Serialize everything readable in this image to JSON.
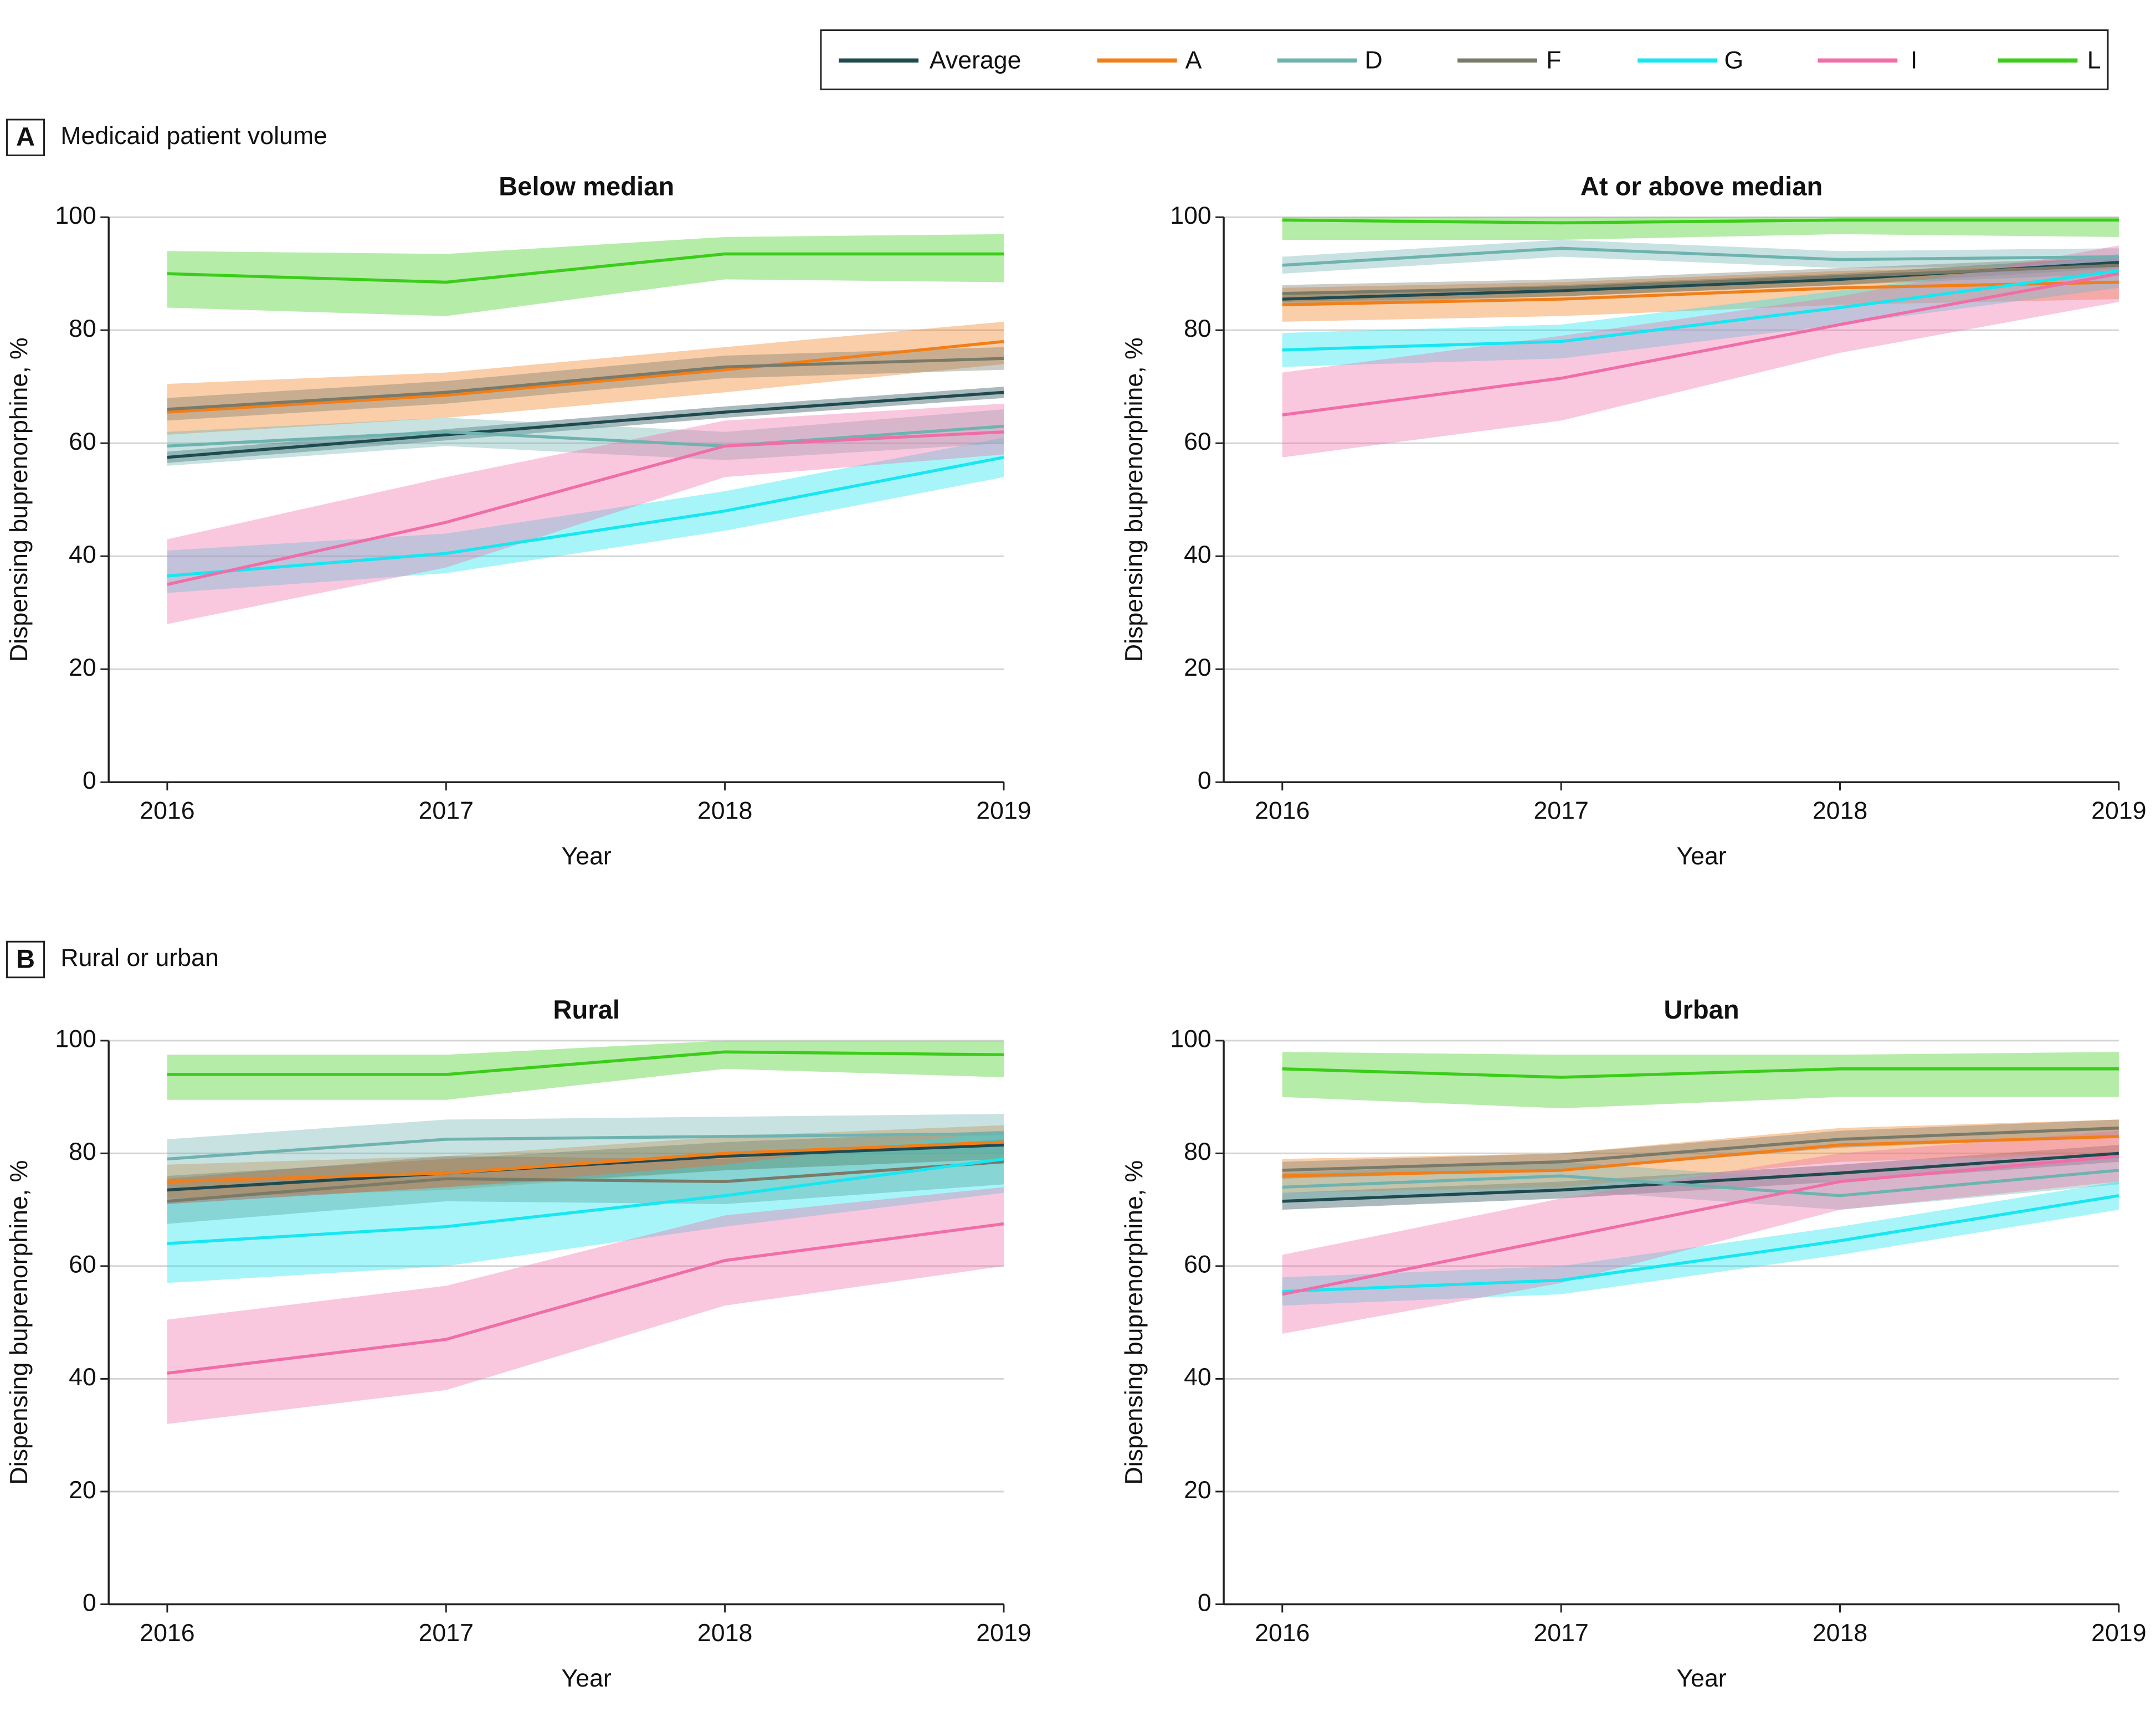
{
  "sections": [
    {
      "letter": "A",
      "title": "Medicaid patient volume"
    },
    {
      "letter": "B",
      "title": "Rural or urban"
    }
  ],
  "legend": {
    "position": "top-right"
  },
  "chart_data": [
    {
      "type": "line",
      "title": "Below median",
      "xlabel": "Year",
      "ylabel": "Dispensing buprenorphine, %",
      "x": [
        2016,
        2017,
        2018,
        2019
      ],
      "xlim": [
        2015.79,
        2019
      ],
      "xticks": [
        2016,
        2017,
        2018,
        2019
      ],
      "ylim": [
        0,
        100
      ],
      "yticks": [
        0,
        20,
        40,
        60,
        80,
        100
      ],
      "grid": true,
      "series": [
        {
          "name": "Average",
          "color": "#1f4a4f",
          "values": [
            57.5,
            61.5,
            65.5,
            69
          ],
          "lower": [
            56.5,
            60.5,
            64.5,
            68
          ],
          "upper": [
            58.5,
            62.5,
            66.5,
            70
          ]
        },
        {
          "name": "A",
          "color": "#f07f1a",
          "values": [
            65.5,
            68.5,
            73,
            78
          ],
          "lower": [
            61.5,
            64.5,
            69,
            74
          ],
          "upper": [
            70.5,
            72.5,
            77,
            81.5
          ]
        },
        {
          "name": "D",
          "color": "#6fb3b0",
          "values": [
            59.5,
            62,
            59.5,
            63
          ],
          "lower": [
            56,
            59.5,
            57,
            60
          ],
          "upper": [
            62,
            64.5,
            62,
            66
          ]
        },
        {
          "name": "F",
          "color": "#7a7a68",
          "values": [
            66,
            69,
            73.5,
            75
          ],
          "lower": [
            64,
            67,
            71.5,
            73
          ],
          "upper": [
            68,
            71,
            75.5,
            77
          ]
        },
        {
          "name": "G",
          "color": "#18e6f0",
          "values": [
            36.5,
            40.5,
            48,
            57.5
          ],
          "lower": [
            33.5,
            37,
            44.5,
            54
          ],
          "upper": [
            41,
            44,
            51.5,
            61
          ]
        },
        {
          "name": "I",
          "color": "#f06ea8",
          "values": [
            35,
            46,
            59.5,
            62
          ],
          "lower": [
            28,
            38,
            54,
            58
          ],
          "upper": [
            43,
            54,
            64,
            67
          ]
        },
        {
          "name": "L",
          "color": "#3ccc1a",
          "values": [
            90,
            88.5,
            93.5,
            93.5
          ],
          "lower": [
            84,
            82.5,
            89,
            88.5
          ],
          "upper": [
            94,
            93.5,
            96.5,
            97
          ]
        }
      ]
    },
    {
      "type": "line",
      "title": "At or above median",
      "xlabel": "Year",
      "ylabel": "Dispensing buprenorphine, %",
      "x": [
        2016,
        2017,
        2018,
        2019
      ],
      "xlim": [
        2015.79,
        2019
      ],
      "xticks": [
        2016,
        2017,
        2018,
        2019
      ],
      "ylim": [
        0,
        100
      ],
      "yticks": [
        0,
        20,
        40,
        60,
        80,
        100
      ],
      "grid": true,
      "series": [
        {
          "color": "#1f4a4f",
          "values": [
            85.5,
            87,
            89,
            92
          ],
          "lower": [
            84.5,
            86,
            88,
            91
          ],
          "upper": [
            86.5,
            88,
            90,
            93
          ]
        },
        {
          "color": "#f07f1a",
          "values": [
            84.5,
            85.5,
            87.5,
            88.5
          ],
          "lower": [
            81.5,
            82.5,
            84.5,
            85.5
          ],
          "upper": [
            87.5,
            88.5,
            90.5,
            91.5
          ]
        },
        {
          "color": "#6fb3b0",
          "values": [
            91.5,
            94.5,
            92.5,
            93
          ],
          "lower": [
            90,
            93,
            91,
            91.5
          ],
          "upper": [
            93,
            96,
            94,
            94.5
          ]
        },
        {
          "color": "#7a7a68",
          "values": [
            86.5,
            87.5,
            89.5,
            91.5
          ],
          "lower": [
            85,
            86,
            88,
            90
          ],
          "upper": [
            88,
            89,
            91,
            93
          ]
        },
        {
          "color": "#18e6f0",
          "values": [
            76.5,
            78,
            84,
            90.5
          ],
          "lower": [
            73.5,
            75,
            81,
            87.5
          ],
          "upper": [
            79.5,
            81,
            87,
            93.5
          ]
        },
        {
          "color": "#f06ea8",
          "values": [
            65,
            71.5,
            81,
            90
          ],
          "lower": [
            57.5,
            64,
            76,
            85
          ],
          "upper": [
            72.5,
            79,
            86,
            95
          ]
        },
        {
          "color": "#3ccc1a",
          "values": [
            99.5,
            99,
            99.5,
            99.5
          ],
          "lower": [
            96,
            96,
            97,
            96.5
          ],
          "upper": [
            100,
            100,
            100,
            100
          ]
        }
      ]
    },
    {
      "type": "line",
      "title": "Rural",
      "xlabel": "Year",
      "ylabel": "Dispensing buprenorphine, %",
      "x": [
        2016,
        2017,
        2018,
        2019
      ],
      "xlim": [
        2015.79,
        2019
      ],
      "xticks": [
        2016,
        2017,
        2018,
        2019
      ],
      "ylim": [
        0,
        100
      ],
      "yticks": [
        0,
        20,
        40,
        60,
        80,
        100
      ],
      "grid": true,
      "series": [
        {
          "color": "#1f4a4f",
          "values": [
            73.5,
            76.5,
            79.5,
            81.5
          ],
          "lower": [
            71,
            74,
            77,
            79
          ],
          "upper": [
            76,
            79,
            82,
            84
          ]
        },
        {
          "color": "#f07f1a",
          "values": [
            75,
            76.5,
            80,
            82
          ],
          "lower": [
            72,
            73.5,
            77,
            79
          ],
          "upper": [
            78,
            79.5,
            83,
            85
          ]
        },
        {
          "color": "#6fb3b0",
          "values": [
            79,
            82.5,
            83,
            83.5
          ],
          "lower": [
            75.5,
            79,
            79.5,
            80
          ],
          "upper": [
            82.5,
            86,
            86.5,
            87
          ]
        },
        {
          "color": "#7a7a68",
          "values": [
            71.5,
            75.5,
            75,
            78.5
          ],
          "lower": [
            67.5,
            71.5,
            71,
            74.5
          ],
          "upper": [
            75.5,
            79.5,
            79,
            82.5
          ]
        },
        {
          "color": "#18e6f0",
          "values": [
            64,
            67,
            72.5,
            79
          ],
          "lower": [
            57,
            60,
            67,
            73
          ],
          "upper": [
            71,
            74,
            78,
            84
          ]
        },
        {
          "color": "#f06ea8",
          "values": [
            41,
            47,
            61,
            67.5
          ],
          "lower": [
            32,
            38,
            53,
            60
          ],
          "upper": [
            50.5,
            56.5,
            69,
            74
          ]
        },
        {
          "color": "#3ccc1a",
          "values": [
            94,
            94,
            98,
            97.5
          ],
          "lower": [
            89.5,
            89.5,
            95,
            93.5
          ],
          "upper": [
            97.5,
            97.5,
            100,
            100
          ]
        }
      ]
    },
    {
      "type": "line",
      "title": "Urban",
      "xlabel": "Year",
      "ylabel": "Dispensing buprenorphine, %",
      "x": [
        2016,
        2017,
        2018,
        2019
      ],
      "xlim": [
        2015.79,
        2019
      ],
      "xticks": [
        2016,
        2017,
        2018,
        2019
      ],
      "ylim": [
        0,
        100
      ],
      "yticks": [
        0,
        20,
        40,
        60,
        80,
        100
      ],
      "grid": true,
      "series": [
        {
          "color": "#1f4a4f",
          "values": [
            71.5,
            73.5,
            76.5,
            80
          ],
          "lower": [
            70,
            72,
            75,
            78.5
          ],
          "upper": [
            73,
            75,
            78,
            81.5
          ]
        },
        {
          "color": "#f07f1a",
          "values": [
            76,
            77,
            81.5,
            83
          ],
          "lower": [
            73,
            74,
            78.5,
            80
          ],
          "upper": [
            79,
            80,
            84.5,
            86
          ]
        },
        {
          "color": "#6fb3b0",
          "values": [
            74,
            76,
            72.5,
            77
          ],
          "lower": [
            71.5,
            73.5,
            70,
            74.5
          ],
          "upper": [
            76.5,
            78.5,
            75,
            79.5
          ]
        },
        {
          "color": "#7a7a68",
          "values": [
            77,
            78.5,
            82.5,
            84.5
          ],
          "lower": [
            75.5,
            77,
            81,
            83
          ],
          "upper": [
            78.5,
            80,
            84,
            86
          ]
        },
        {
          "color": "#18e6f0",
          "values": [
            55.5,
            57.5,
            64.5,
            72.5
          ],
          "lower": [
            53,
            55,
            62,
            70
          ],
          "upper": [
            58,
            60,
            67,
            75
          ]
        },
        {
          "color": "#f06ea8",
          "values": [
            55,
            65,
            75,
            79.5
          ],
          "lower": [
            48,
            57,
            70,
            75
          ],
          "upper": [
            62,
            72,
            80,
            84
          ]
        },
        {
          "color": "#3ccc1a",
          "values": [
            95,
            93.5,
            95,
            95
          ],
          "lower": [
            90,
            88,
            90,
            90
          ],
          "upper": [
            98,
            97.5,
            97.5,
            98
          ]
        }
      ]
    }
  ]
}
